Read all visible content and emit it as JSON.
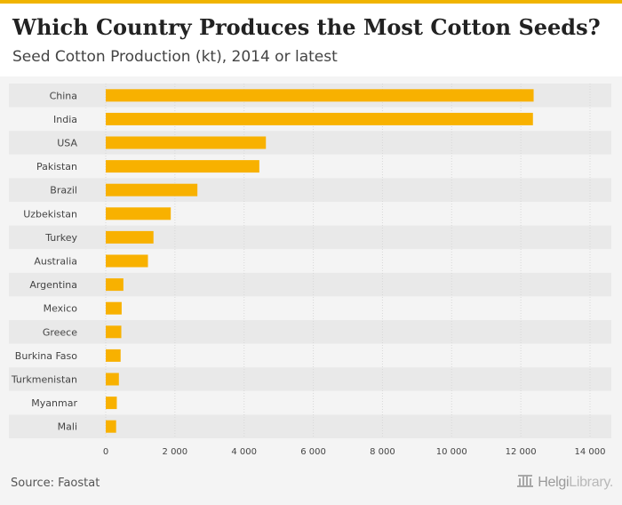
{
  "chart_data": {
    "type": "bar",
    "orientation": "horizontal",
    "title": "Which Country Produces the Most Cotton Seeds?",
    "subtitle": "Seed Cotton Production (kt), 2014 or latest",
    "categories": [
      "China",
      "India",
      "USA",
      "Pakistan",
      "Brazil",
      "Uzbekistan",
      "Turkey",
      "Australia",
      "Argentina",
      "Mexico",
      "Greece",
      "Burkina Faso",
      "Turkmenistan",
      "Myanmar",
      "Mali"
    ],
    "values": [
      12370,
      12350,
      4630,
      4440,
      2650,
      1880,
      1380,
      1220,
      510,
      460,
      450,
      430,
      380,
      320,
      300
    ],
    "xlim": [
      0,
      14000
    ],
    "xticks": [
      0,
      2000,
      4000,
      6000,
      8000,
      10000,
      12000,
      14000
    ],
    "xtick_labels": [
      "0",
      "2 000",
      "4 000",
      "6 000",
      "8 000",
      "10 000",
      "12 000",
      "14 000"
    ],
    "xlabel": "",
    "ylabel": "",
    "grid": true,
    "bar_color": "#f8b100"
  },
  "footer": {
    "source": "Source: Faostat",
    "brand_bold": "Helgi",
    "brand_light": "Library."
  },
  "colors": {
    "accent": "#f0b400",
    "bar": "#f8b100",
    "band_dark": "#e9e9e9",
    "band_light": "#f4f4f4"
  }
}
